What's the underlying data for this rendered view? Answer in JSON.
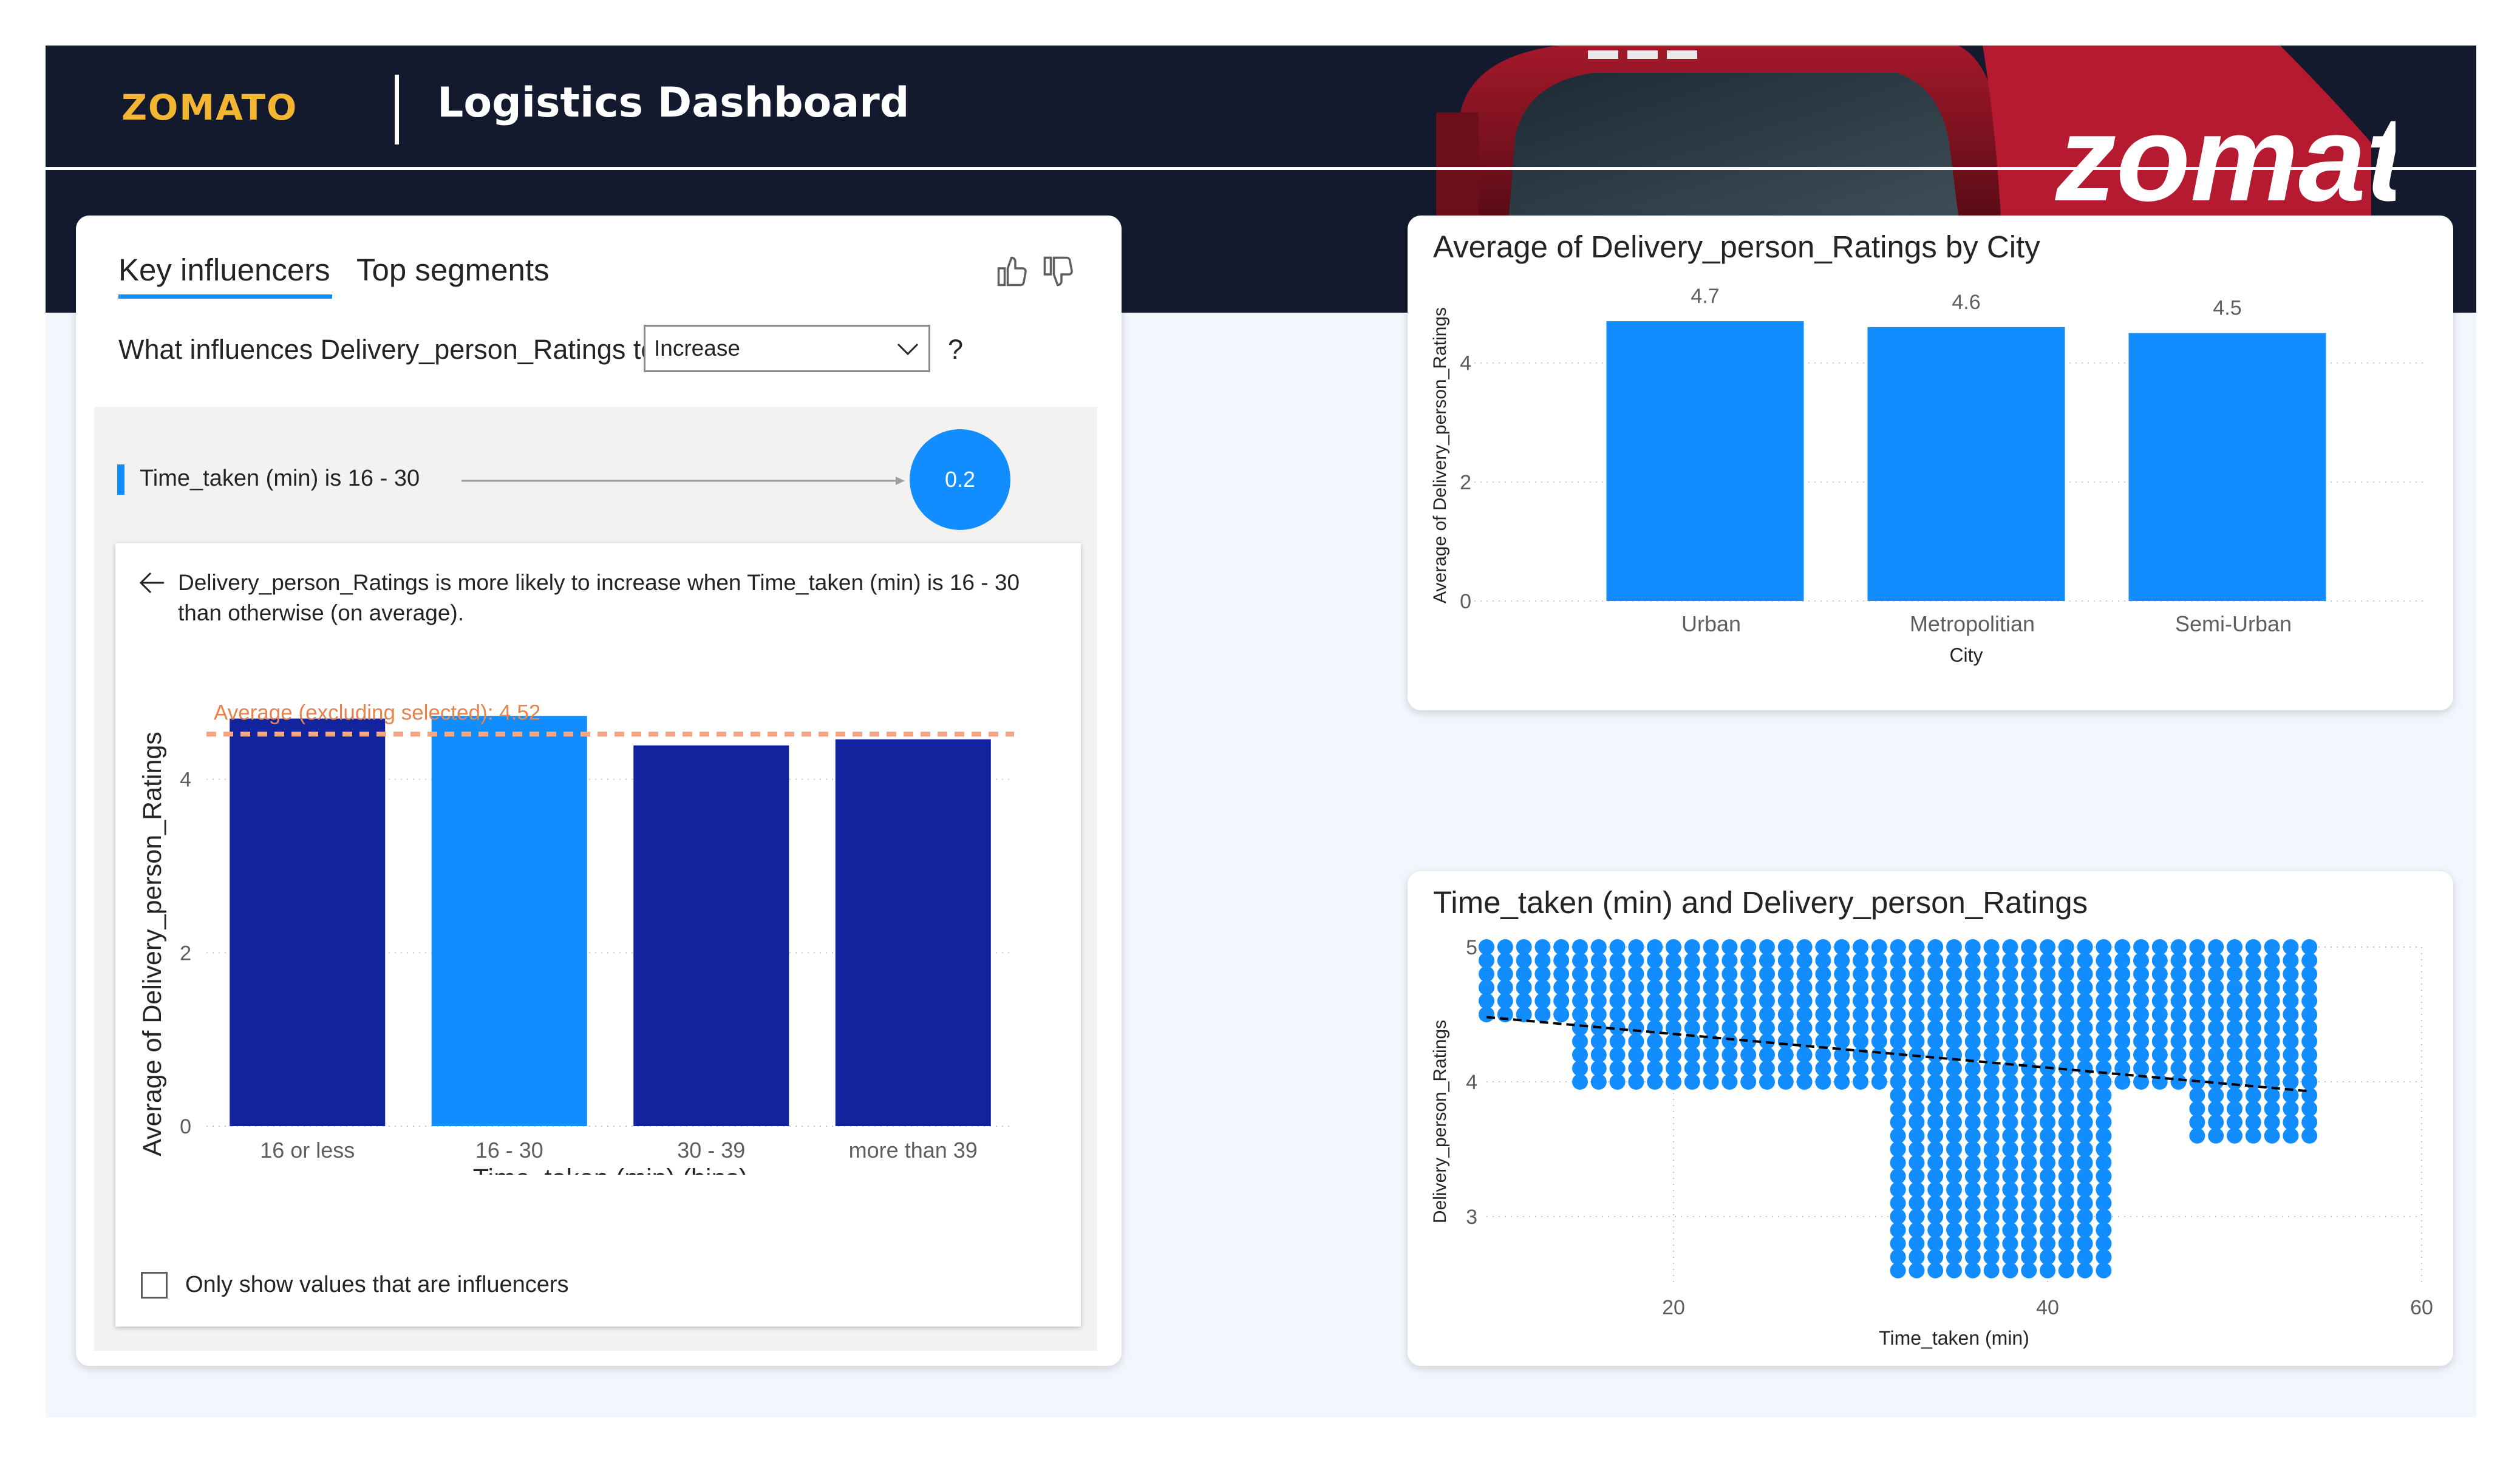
{
  "header": {
    "brand": "ZOMATO",
    "title": "Logistics Dashboard",
    "truck_sign": "zomato"
  },
  "key_influencers": {
    "tabs": [
      {
        "label": "Key influencers",
        "active": true
      },
      {
        "label": "Top segments",
        "active": false
      }
    ],
    "question_prefix": "What influences Delivery_person_Ratings to",
    "dropdown_value": "Increase",
    "question_suffix": "?",
    "influencer": {
      "label": "Time_taken (min) is 16 - 30",
      "value": "0.2"
    },
    "detail_text": "Delivery_person_Ratings is more likely to increase when Time_taken (min) is 16 - 30 than otherwise (on average).",
    "checkbox_label": "Only show values that are influencers",
    "checkbox_checked": false,
    "accent_color": "#118dff"
  },
  "chart_data": [
    {
      "type": "bar",
      "title": "",
      "categories": [
        "16 or less",
        "16 - 30",
        "30 - 39",
        "more than 39"
      ],
      "values": [
        4.7,
        4.73,
        4.39,
        4.46
      ],
      "highlighted": "16 - 30",
      "colors": {
        "default": "#12239e",
        "highlight": "#118dff",
        "reference": "#f4a582"
      },
      "reference_line": {
        "value": 4.52,
        "label": "Average (excluding selected): 4.52"
      },
      "xlabel": "Time_taken (min) (bins)",
      "ylabel": "Average of Delivery_person_Ratings",
      "yticks": [
        "0",
        "2",
        "4"
      ],
      "ylim": [
        0,
        4.9
      ],
      "grid": true
    },
    {
      "type": "bar",
      "title": "Average of Delivery_person_Ratings by City",
      "categories": [
        "Urban",
        "Metropolitian",
        "Semi-Urban"
      ],
      "values": [
        4.7,
        4.6,
        4.5
      ],
      "data_labels": [
        "4.7",
        "4.6",
        "4.5"
      ],
      "color": "#118dff",
      "xlabel": "City",
      "ylabel": "Average of Delivery_person_Ratings",
      "yticks": [
        "0",
        "2",
        "4"
      ],
      "ylim": [
        0,
        5.2
      ],
      "grid": true
    },
    {
      "type": "scatter",
      "title": "Time_taken (min) and Delivery_person_Ratings",
      "xlabel": "Time_taken (min)",
      "ylabel": "Delivery_person_Ratings",
      "xticks": [
        "20",
        "40",
        "60"
      ],
      "yticks": [
        "3",
        "4",
        "5"
      ],
      "xlim": [
        10,
        60
      ],
      "ylim": [
        2.5,
        5
      ],
      "color": "#118dff",
      "trend_line": {
        "x": [
          10,
          54
        ],
        "y": [
          4.48,
          3.93
        ],
        "color": "#000000"
      },
      "point_columns": [
        {
          "x_from": 10,
          "x_to": 14,
          "y_min": 4.5
        },
        {
          "x_from": 15,
          "x_to": 25,
          "y_min": 4.0
        },
        {
          "x_from": 26,
          "x_to": 31,
          "y_min": 4.0
        },
        {
          "x_from": 32,
          "x_to": 36,
          "y_min": 2.6
        },
        {
          "x_from": 37,
          "x_to": 40,
          "y_min": 2.6
        },
        {
          "x_from": 41,
          "x_to": 43,
          "y_min": 2.6
        },
        {
          "x_from": 44,
          "x_to": 47,
          "y_min": 4.0
        },
        {
          "x_from": 48,
          "x_to": 54,
          "y_min": 3.6
        }
      ],
      "grid": true
    }
  ]
}
